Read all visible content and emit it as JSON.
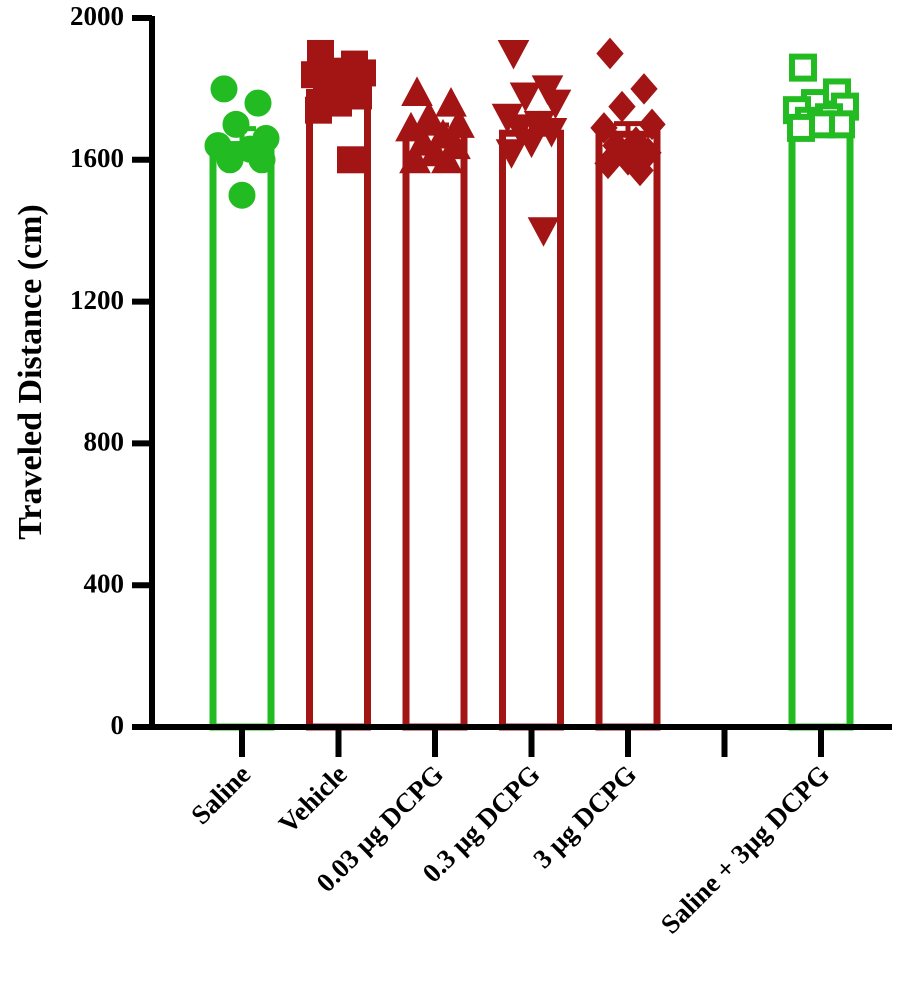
{
  "chart_data": {
    "type": "bar",
    "ylabel": "Traveled Distance (cm)",
    "xlabel": "",
    "ylim": [
      0,
      2000
    ],
    "yticks": [
      0,
      400,
      800,
      1200,
      1600,
      2000
    ],
    "ytick_labels": [
      "0",
      "400",
      "800",
      "1200",
      "1600",
      "2000"
    ],
    "categories": [
      "Saline",
      "Vehicle",
      "0.03 µg DCPG",
      "0.3 µg DCPG",
      "3 µg DCPG",
      "",
      "Saline + 3µg DCPG"
    ],
    "bars": [
      {
        "category": "Saline",
        "mean": 1643,
        "sem": 45,
        "color": "#22bb22",
        "marker": "circle",
        "filled": true,
        "points": [
          1800,
          1760,
          1700,
          1660,
          1640,
          1630,
          1600,
          1600,
          1500
        ]
      },
      {
        "category": "Vehicle",
        "mean": 1790,
        "sem": 35,
        "color": "#a31515",
        "marker": "square",
        "filled": true,
        "points": [
          1900,
          1870,
          1850,
          1845,
          1840,
          1820,
          1800,
          1780,
          1760,
          1740,
          1600
        ]
      },
      {
        "category": "0.03 µg DCPG",
        "mean": 1678,
        "sem": 20,
        "color": "#a31515",
        "marker": "triangle-up",
        "filled": true,
        "points": [
          1790,
          1760,
          1720,
          1700,
          1690,
          1670,
          1650,
          1640,
          1620,
          1600,
          1600
        ]
      },
      {
        "category": "0.3 µg DCPG",
        "mean": 1675,
        "sem": 40,
        "color": "#a31515",
        "marker": "triangle-down",
        "filled": true,
        "points": [
          1900,
          1800,
          1780,
          1760,
          1720,
          1700,
          1690,
          1680,
          1650,
          1620,
          1400
        ]
      },
      {
        "category": "3 µg DCPG",
        "mean": 1672,
        "sem": 30,
        "color": "#a31515",
        "marker": "diamond",
        "filled": true,
        "points": [
          1900,
          1800,
          1750,
          1700,
          1690,
          1650,
          1640,
          1620,
          1600,
          1590,
          1570
        ]
      },
      {
        "category": "",
        "mean": null,
        "sem": null,
        "color": "#000000",
        "marker": "none",
        "filled": false,
        "points": []
      },
      {
        "category": "Saline + 3µg DCPG",
        "mean": 1712,
        "sem": 20,
        "color": "#22bb22",
        "marker": "square",
        "filled": false,
        "points": [
          1860,
          1790,
          1760,
          1750,
          1740,
          1720,
          1710,
          1700,
          1700,
          1690
        ]
      }
    ],
    "grid": false,
    "legend": "none"
  }
}
